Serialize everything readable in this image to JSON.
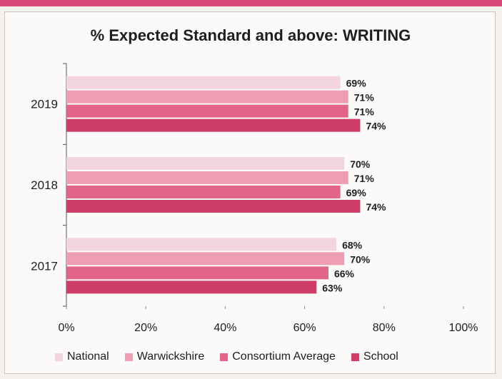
{
  "chart_data": {
    "type": "bar",
    "orientation": "horizontal",
    "title": "% Expected Standard and above: WRITING",
    "categories": [
      "2019",
      "2018",
      "2017"
    ],
    "series": [
      {
        "name": "National",
        "color": "#f3d5de",
        "values": [
          69,
          70,
          68
        ]
      },
      {
        "name": "Warwickshire",
        "color": "#ef9cb5",
        "values": [
          71,
          71,
          70
        ]
      },
      {
        "name": "Consortium Average",
        "color": "#e2648a",
        "values": [
          71,
          69,
          66
        ]
      },
      {
        "name": "School",
        "color": "#cf3d69",
        "values": [
          74,
          74,
          63
        ]
      }
    ],
    "data_labels": [
      [
        "69%",
        "71%",
        "71%",
        "74%"
      ],
      [
        "70%",
        "71%",
        "69%",
        "74%"
      ],
      [
        "68%",
        "70%",
        "66%",
        "63%"
      ]
    ],
    "xlim": [
      0,
      100
    ],
    "xticks": [
      0,
      20,
      40,
      60,
      80,
      100
    ],
    "xtick_labels": [
      "0%",
      "20%",
      "40%",
      "60%",
      "80%",
      "100%"
    ],
    "legend": "bottom",
    "grid": false
  },
  "page": {
    "accent_color": "#d94a78"
  }
}
